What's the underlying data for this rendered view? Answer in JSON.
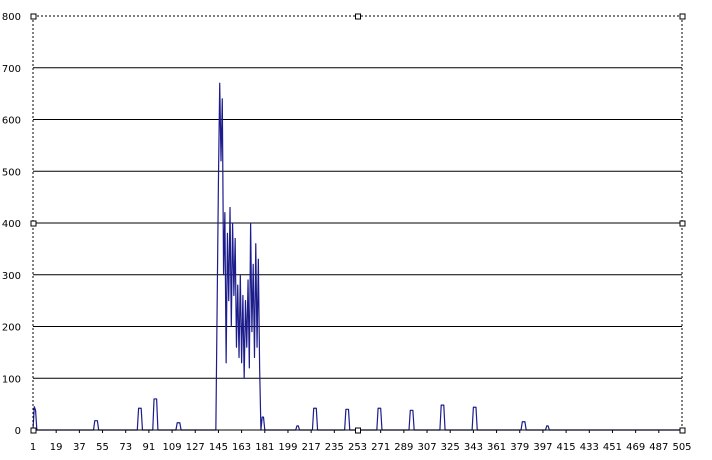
{
  "chart_data": {
    "type": "line",
    "title": "",
    "xlabel": "",
    "ylabel": "",
    "ylim": [
      0,
      800
    ],
    "xlim": [
      1,
      505
    ],
    "y_ticks": [
      0,
      100,
      200,
      300,
      400,
      500,
      600,
      700,
      800
    ],
    "x_tick_labels": [
      "1",
      "19",
      "37",
      "55",
      "73",
      "91",
      "109",
      "127",
      "145",
      "163",
      "181",
      "199",
      "217",
      "235",
      "253",
      "271",
      "289",
      "307",
      "325",
      "343",
      "361",
      "379",
      "397",
      "415",
      "433",
      "451",
      "469",
      "487",
      "505"
    ],
    "grid": "horizontal",
    "legend": "none",
    "colors": {
      "line": "#1c1c8c",
      "grid": "#000000",
      "plot_border": "#000000",
      "background": "#ffffff"
    },
    "series": [
      {
        "points": [
          [
            1,
            0
          ],
          [
            2,
            45
          ],
          [
            3,
            38
          ],
          [
            4,
            0
          ],
          [
            48,
            0
          ],
          [
            49,
            18
          ],
          [
            51,
            18
          ],
          [
            52,
            0
          ],
          [
            82,
            0
          ],
          [
            83,
            42
          ],
          [
            85,
            42
          ],
          [
            86,
            0
          ],
          [
            94,
            0
          ],
          [
            95,
            60
          ],
          [
            97,
            60
          ],
          [
            98,
            0
          ],
          [
            112,
            0
          ],
          [
            113,
            14
          ],
          [
            115,
            14
          ],
          [
            116,
            0
          ],
          [
            143,
            0
          ],
          [
            144,
            240
          ],
          [
            145,
            480
          ],
          [
            146,
            670
          ],
          [
            147,
            520
          ],
          [
            148,
            640
          ],
          [
            149,
            300
          ],
          [
            150,
            420
          ],
          [
            151,
            130
          ],
          [
            152,
            380
          ],
          [
            153,
            250
          ],
          [
            154,
            430
          ],
          [
            155,
            200
          ],
          [
            156,
            400
          ],
          [
            157,
            260
          ],
          [
            158,
            370
          ],
          [
            159,
            160
          ],
          [
            160,
            280
          ],
          [
            161,
            140
          ],
          [
            162,
            300
          ],
          [
            163,
            130
          ],
          [
            164,
            260
          ],
          [
            165,
            100
          ],
          [
            166,
            250
          ],
          [
            167,
            160
          ],
          [
            168,
            290
          ],
          [
            169,
            120
          ],
          [
            170,
            400
          ],
          [
            171,
            190
          ],
          [
            172,
            320
          ],
          [
            173,
            140
          ],
          [
            174,
            360
          ],
          [
            175,
            160
          ],
          [
            176,
            330
          ],
          [
            177,
            120
          ],
          [
            178,
            0
          ],
          [
            179,
            25
          ],
          [
            180,
            25
          ],
          [
            181,
            0
          ],
          [
            205,
            0
          ],
          [
            206,
            8
          ],
          [
            207,
            8
          ],
          [
            208,
            0
          ],
          [
            218,
            0
          ],
          [
            219,
            42
          ],
          [
            221,
            42
          ],
          [
            222,
            0
          ],
          [
            243,
            0
          ],
          [
            244,
            40
          ],
          [
            246,
            40
          ],
          [
            247,
            0
          ],
          [
            268,
            0
          ],
          [
            269,
            42
          ],
          [
            271,
            42
          ],
          [
            272,
            0
          ],
          [
            293,
            0
          ],
          [
            294,
            38
          ],
          [
            296,
            38
          ],
          [
            297,
            0
          ],
          [
            317,
            0
          ],
          [
            318,
            48
          ],
          [
            320,
            48
          ],
          [
            321,
            0
          ],
          [
            342,
            0
          ],
          [
            343,
            44
          ],
          [
            345,
            44
          ],
          [
            346,
            0
          ],
          [
            380,
            0
          ],
          [
            381,
            16
          ],
          [
            383,
            16
          ],
          [
            384,
            0
          ],
          [
            399,
            0
          ],
          [
            400,
            8
          ],
          [
            401,
            8
          ],
          [
            402,
            0
          ],
          [
            505,
            0
          ]
        ]
      }
    ]
  }
}
